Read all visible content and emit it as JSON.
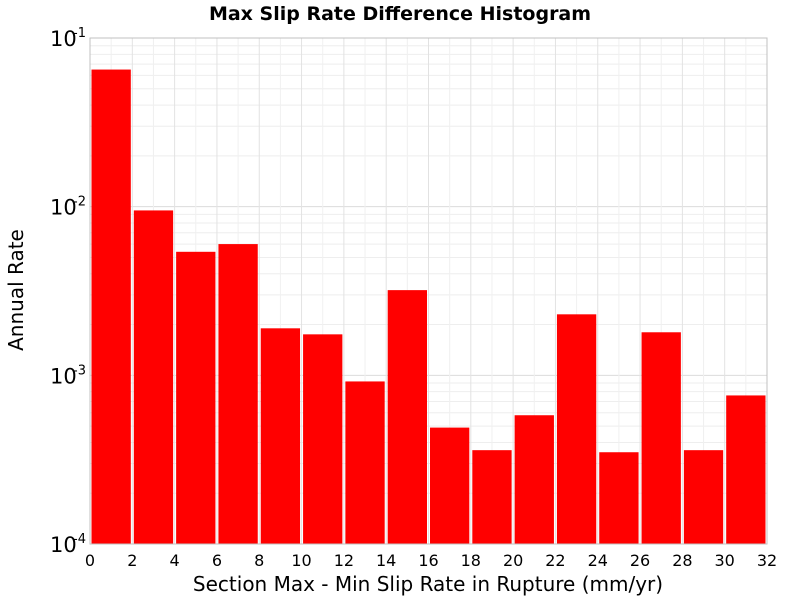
{
  "chart_data": {
    "type": "bar",
    "title": "Max Slip Rate Difference Histogram",
    "xlabel": "Section Max - Min Slip Rate in Rupture (mm/yr)",
    "ylabel": "Annual Rate",
    "xlim": [
      0,
      32
    ],
    "ylim": [
      0.0001,
      0.1
    ],
    "yscale": "log",
    "bin_width": 2,
    "x_ticks": [
      "0",
      "2",
      "4",
      "6",
      "8",
      "10",
      "12",
      "14",
      "16",
      "18",
      "20",
      "22",
      "24",
      "26",
      "28",
      "30",
      "32"
    ],
    "y_ticks": [
      {
        "base": "10",
        "exp": "-1"
      },
      {
        "base": "10",
        "exp": "-2"
      },
      {
        "base": "10",
        "exp": "-3"
      },
      {
        "base": "10",
        "exp": "-4"
      }
    ],
    "bin_centers": [
      1,
      3,
      5,
      7,
      9,
      11,
      13,
      15,
      17,
      19,
      21,
      23,
      25,
      27,
      29,
      31
    ],
    "values": [
      0.065,
      0.0095,
      0.0054,
      0.006,
      0.0019,
      0.00175,
      0.00092,
      0.0032,
      0.00049,
      0.00036,
      0.00058,
      0.0023,
      0.00035,
      0.0018,
      0.00036,
      0.00076
    ],
    "bar_color": "#ff0000",
    "grid": true,
    "legend": "none"
  }
}
